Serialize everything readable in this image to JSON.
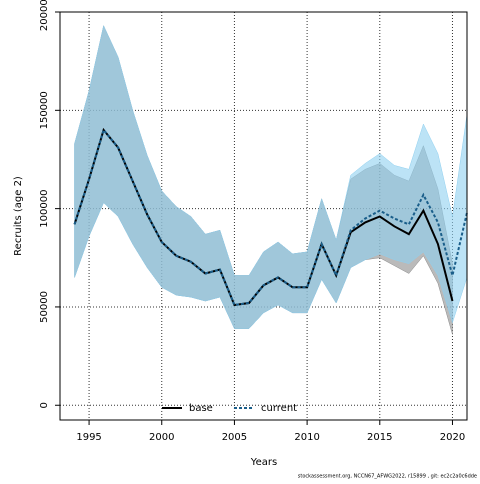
{
  "chart_data": {
    "type": "line",
    "xlabel": "Years",
    "ylabel": "Recruits (age 2)",
    "footnote": "stockassessment.org, NCCN67_AFWG2022, r15899 , git: ec2c2a0c6dde",
    "x": [
      1994,
      1995,
      1996,
      1997,
      1998,
      1999,
      2000,
      2001,
      2002,
      2003,
      2004,
      2005,
      2006,
      2007,
      2008,
      2009,
      2010,
      2011,
      2012,
      2013,
      2014,
      2015,
      2016,
      2017,
      2018,
      2019,
      2020,
      2021
    ],
    "series": [
      {
        "name": "base",
        "color": "#000000",
        "band_color": "#8c8c8c",
        "values": [
          92000,
          115000,
          140000,
          131000,
          114000,
          97000,
          83000,
          76000,
          73000,
          67000,
          69000,
          51000,
          52000,
          61000,
          65000,
          60000,
          60000,
          82000,
          66000,
          88000,
          93000,
          96000,
          91000,
          87000,
          99000,
          82000,
          53000,
          null
        ],
        "upper": [
          133000,
          160000,
          193000,
          177000,
          150000,
          127000,
          109000,
          101000,
          96000,
          87000,
          89000,
          66000,
          66000,
          78000,
          83000,
          77000,
          78000,
          105000,
          84000,
          115000,
          120000,
          123000,
          117000,
          114000,
          132000,
          110000,
          72000,
          null
        ],
        "lower": [
          65000,
          86000,
          103000,
          96000,
          82000,
          70000,
          60000,
          56000,
          55000,
          53000,
          55000,
          39000,
          39000,
          47000,
          51000,
          47000,
          47000,
          64000,
          52000,
          70000,
          74000,
          75000,
          71000,
          67000,
          76000,
          62000,
          36000,
          null
        ]
      },
      {
        "name": "current",
        "color": "#1a5e8a",
        "band_color": "#8fd0f0",
        "values": [
          92000,
          115000,
          140000,
          131000,
          114000,
          97000,
          83000,
          76000,
          73000,
          67000,
          69000,
          51000,
          52000,
          61000,
          65000,
          60000,
          60000,
          82000,
          66000,
          89000,
          95000,
          99000,
          95000,
          92000,
          107000,
          93000,
          66000,
          98000
        ],
        "upper": [
          133000,
          160000,
          193000,
          177000,
          150000,
          127000,
          109000,
          101000,
          96000,
          87000,
          89000,
          66000,
          66000,
          78000,
          83000,
          77000,
          78000,
          105000,
          84000,
          117000,
          123000,
          128000,
          122000,
          120000,
          143000,
          128000,
          96000,
          148000
        ],
        "lower": [
          65000,
          86000,
          103000,
          96000,
          82000,
          70000,
          60000,
          56000,
          55000,
          53000,
          55000,
          39000,
          39000,
          47000,
          51000,
          47000,
          47000,
          64000,
          52000,
          70000,
          74000,
          77000,
          74000,
          72000,
          78000,
          66000,
          42000,
          65000
        ]
      }
    ],
    "xlim": [
      1993,
      2021
    ],
    "ylim": [
      -7500,
      200000
    ],
    "xticks": [
      1995,
      2000,
      2005,
      2010,
      2015,
      2020
    ],
    "yticks": [
      0,
      50000,
      100000,
      150000,
      200000
    ],
    "grid": true,
    "legend": "bottom"
  }
}
